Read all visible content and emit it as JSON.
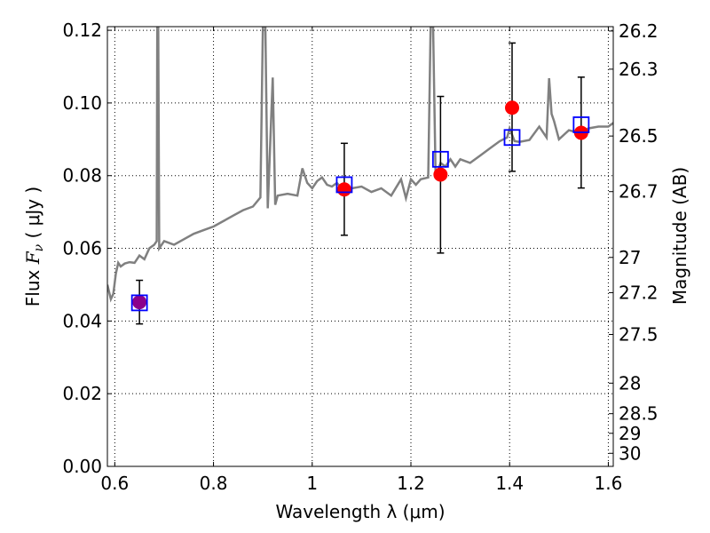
{
  "chart_data": {
    "type": "scatter",
    "xlabel": "Wavelength  λ (μm)",
    "ylabel_prefix": "Flux  ",
    "ylabel_var": "F",
    "ylabel_sub": "ν",
    "ylabel_suffix": "  ( μJy )",
    "ylabel_right": "Magnitude (AB)",
    "xlim": [
      0.585,
      1.61
    ],
    "ylim": [
      0.0,
      0.121
    ],
    "grid": true,
    "x_ticks": [
      0.6,
      0.8,
      1.0,
      1.2,
      1.4,
      1.6
    ],
    "x_tick_labels": [
      "0.6",
      "0.8",
      "1",
      "1.2",
      "1.4",
      "1.6"
    ],
    "y_ticks": [
      0.0,
      0.02,
      0.04,
      0.06,
      0.08,
      0.1,
      0.12
    ],
    "y_tick_labels": [
      "0.00",
      "0.02",
      "0.04",
      "0.06",
      "0.08",
      "0.10",
      "0.12"
    ],
    "right_ticks": [
      {
        "label": "26.2",
        "flux": 0.1198
      },
      {
        "label": "26.3",
        "flux": 0.1093
      },
      {
        "label": "26.5",
        "flux": 0.0909
      },
      {
        "label": "26.7",
        "flux": 0.0756
      },
      {
        "label": "27",
        "flux": 0.0575
      },
      {
        "label": "27.2",
        "flux": 0.0478
      },
      {
        "label": "27.5",
        "flux": 0.0363
      },
      {
        "label": "28",
        "flux": 0.0229
      },
      {
        "label": "28.5",
        "flux": 0.0145
      },
      {
        "label": "29",
        "flux": 0.0091
      },
      {
        "label": "30",
        "flux": 0.0036
      }
    ],
    "model_spectrum": {
      "color": "#808080",
      "x": [
        0.585,
        0.592,
        0.597,
        0.602,
        0.607,
        0.612,
        0.62,
        0.63,
        0.64,
        0.65,
        0.66,
        0.67,
        0.68,
        0.685,
        0.686,
        0.688,
        0.69,
        0.7,
        0.72,
        0.74,
        0.76,
        0.78,
        0.8,
        0.82,
        0.84,
        0.86,
        0.88,
        0.895,
        0.9,
        0.905,
        0.91,
        0.92,
        0.925,
        0.93,
        0.95,
        0.97,
        0.98,
        0.99,
        1.0,
        1.01,
        1.02,
        1.03,
        1.04,
        1.05,
        1.06,
        1.08,
        1.1,
        1.12,
        1.14,
        1.16,
        1.18,
        1.19,
        1.2,
        1.21,
        1.22,
        1.235,
        1.24,
        1.245,
        1.25,
        1.255,
        1.26,
        1.27,
        1.28,
        1.29,
        1.3,
        1.32,
        1.34,
        1.36,
        1.38,
        1.395,
        1.4,
        1.41,
        1.42,
        1.44,
        1.46,
        1.475,
        1.48,
        1.485,
        1.49,
        1.5,
        1.52,
        1.54,
        1.56,
        1.58,
        1.6,
        1.61
      ],
      "y": [
        0.05,
        0.046,
        0.0475,
        0.053,
        0.056,
        0.055,
        0.0558,
        0.0562,
        0.056,
        0.058,
        0.057,
        0.06,
        0.061,
        0.062,
        0.121,
        0.121,
        0.06,
        0.062,
        0.061,
        0.0625,
        0.064,
        0.065,
        0.066,
        0.0675,
        0.069,
        0.0705,
        0.0715,
        0.074,
        0.121,
        0.121,
        0.071,
        0.107,
        0.072,
        0.0745,
        0.075,
        0.0745,
        0.082,
        0.078,
        0.0765,
        0.0785,
        0.0795,
        0.0775,
        0.077,
        0.078,
        0.0765,
        0.0765,
        0.077,
        0.0755,
        0.0765,
        0.0745,
        0.079,
        0.0738,
        0.079,
        0.0775,
        0.079,
        0.0795,
        0.121,
        0.121,
        0.08,
        0.0815,
        0.0835,
        0.0825,
        0.0845,
        0.0825,
        0.0845,
        0.0835,
        0.0855,
        0.0875,
        0.0895,
        0.0905,
        0.093,
        0.0895,
        0.0893,
        0.0898,
        0.0935,
        0.0905,
        0.1068,
        0.097,
        0.095,
        0.09,
        0.0925,
        0.0918,
        0.093,
        0.0935,
        0.0935,
        0.0945
      ]
    },
    "series": [
      {
        "name": "",
        "marker": "circle",
        "color": "#ff0000",
        "x": [
          1.065,
          1.26,
          1.405,
          1.545
        ],
        "y": [
          0.0762,
          0.0803,
          0.0987,
          0.0918
        ],
        "yerr_low": [
          0.0636,
          0.0587,
          0.0812,
          0.0766
        ],
        "yerr_high": [
          0.0889,
          0.1018,
          0.1165,
          0.1071
        ]
      },
      {
        "name": "",
        "marker": "circle",
        "color": "#8B008B",
        "x": [
          0.65
        ],
        "y": [
          0.0452
        ],
        "yerr_low": [
          0.0392
        ],
        "yerr_high": [
          0.0512
        ]
      },
      {
        "name": "",
        "marker": "open-square",
        "color": "#0000ff",
        "x": [
          0.65,
          1.065,
          1.26,
          1.405,
          1.545
        ],
        "y": [
          0.045,
          0.0775,
          0.0845,
          0.0905,
          0.094
        ]
      }
    ]
  }
}
